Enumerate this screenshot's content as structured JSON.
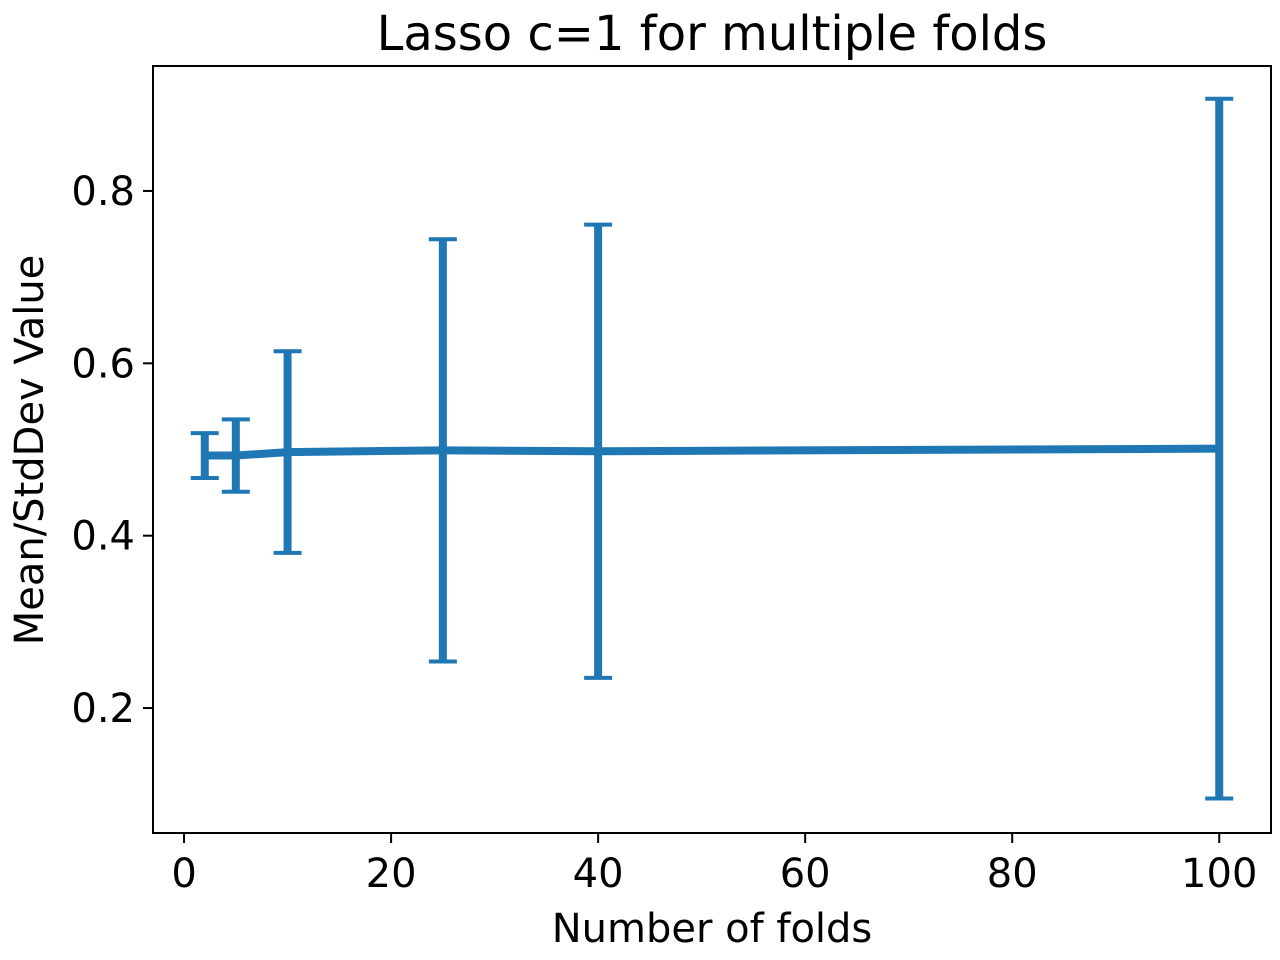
{
  "chart_data": {
    "type": "line",
    "title": "Lasso c=1 for multiple folds",
    "xlabel": "Number of folds",
    "ylabel": "Mean/StdDev Value",
    "xlim": [
      -3,
      105
    ],
    "ylim": [
      0.055,
      0.945
    ],
    "x_ticks": [
      0,
      20,
      40,
      60,
      80,
      100
    ],
    "y_ticks": [
      0.2,
      0.4,
      0.6,
      0.8
    ],
    "x_tick_labels": [
      "0",
      "20",
      "40",
      "60",
      "80",
      "100"
    ],
    "y_tick_labels": [
      "0.2",
      "0.4",
      "0.6",
      "0.8"
    ],
    "grid": false,
    "series": [
      {
        "color": "#1f77b4",
        "x": [
          2,
          5,
          10,
          25,
          40,
          100
        ],
        "y": [
          0.493,
          0.493,
          0.497,
          0.499,
          0.498,
          0.501
        ],
        "yerr": [
          0.026,
          0.042,
          0.117,
          0.245,
          0.263,
          0.406
        ]
      }
    ]
  }
}
